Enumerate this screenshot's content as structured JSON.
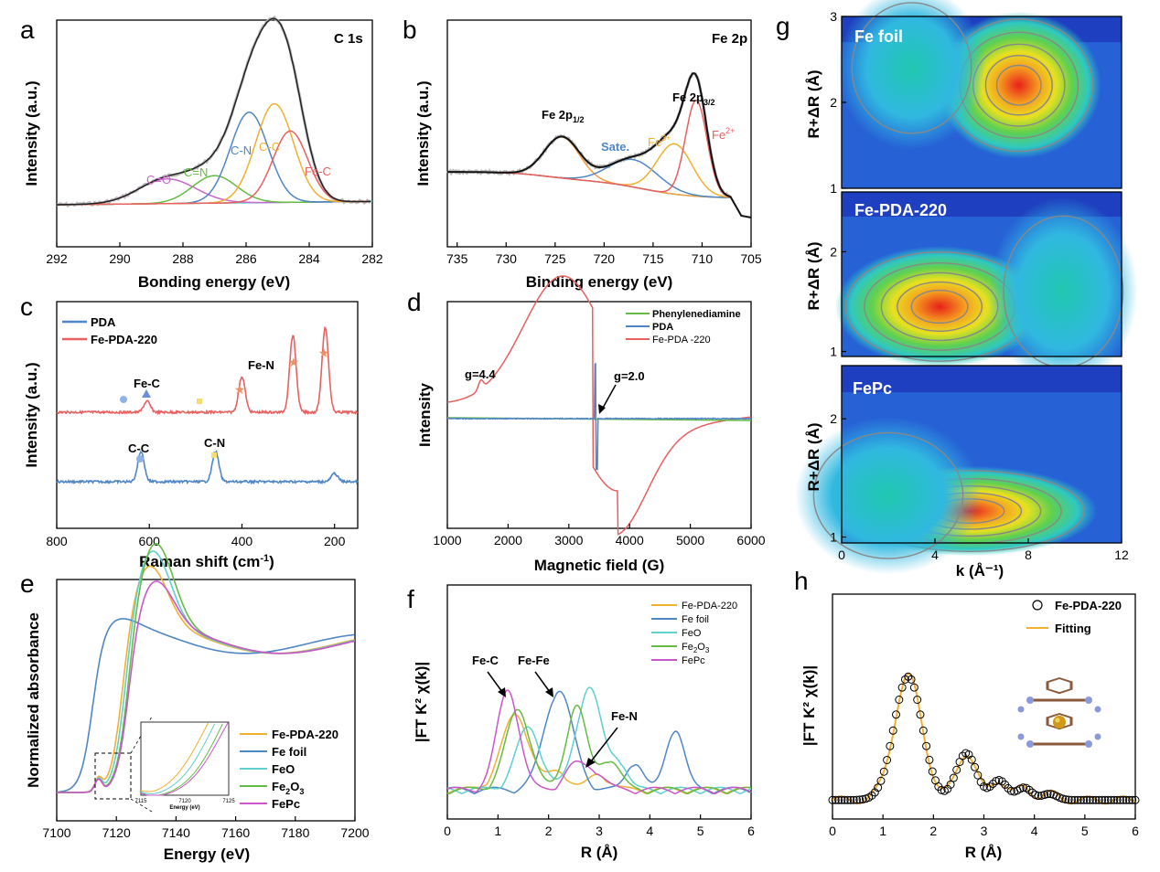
{
  "panel_labels": [
    "a",
    "b",
    "c",
    "d",
    "e",
    "f",
    "g",
    "h"
  ],
  "chart_data": [
    {
      "id": "a",
      "type": "line",
      "title": "C 1s",
      "xlabel": "Bonding energy (eV)",
      "ylabel": "Intensity (a.u.)",
      "xlim": [
        292,
        282
      ],
      "ylim": [
        0,
        1
      ],
      "xticks": [
        "292",
        "290",
        "288",
        "286",
        "284",
        "282"
      ],
      "peaks": [
        {
          "name": "C=O",
          "center": 288.5,
          "height": 0.09,
          "width": 0.9,
          "color": "#cc66cc"
        },
        {
          "name": "C=N",
          "center": 287.0,
          "height": 0.1,
          "width": 0.7,
          "color": "#66bb44"
        },
        {
          "name": "C-N",
          "center": 285.9,
          "height": 0.33,
          "width": 0.6,
          "color": "#4f86c6"
        },
        {
          "name": "C-C",
          "center": 285.1,
          "height": 0.36,
          "width": 0.6,
          "color": "#f0b030"
        },
        {
          "name": "Fe-C",
          "center": 284.6,
          "height": 0.26,
          "width": 0.55,
          "color": "#e86060"
        }
      ],
      "labels": [
        "C=O",
        "C=N",
        "C-N",
        "C-C",
        "Fe-C"
      ]
    },
    {
      "id": "b",
      "type": "line",
      "title": "Fe 2p",
      "xlabel": "Binding energy (eV)",
      "ylabel": "Intensity (a.u.)",
      "xlim": [
        736,
        705
      ],
      "ylim": [
        0,
        1
      ],
      "xticks": [
        "735",
        "730",
        "725",
        "720",
        "715",
        "710",
        "705"
      ],
      "peaks": [
        {
          "name": "Fe 2p1/2",
          "center": 724.3,
          "height": 0.18,
          "width": 1.8,
          "color": "#f0a040"
        },
        {
          "name": "Sate.",
          "center": 717.0,
          "height": 0.12,
          "width": 2.5,
          "color": "#4f86c6"
        },
        {
          "name": "Fe3+",
          "center": 712.8,
          "height": 0.22,
          "width": 1.8,
          "color": "#f0b030"
        },
        {
          "name": "Fe2+",
          "center": 710.6,
          "height": 0.42,
          "width": 1.1,
          "color": "#e86060"
        }
      ],
      "annotations": {
        "fe2p12_base": "Fe 2p",
        "fe2p12_sub": "1/2",
        "fe2p32_base": "Fe 2p",
        "fe2p32_sub": "3/2",
        "sate": "Sate.",
        "fe3": "Fe",
        "fe3_sup": "3+",
        "fe2": "Fe",
        "fe2_sup": "2+"
      }
    },
    {
      "id": "c",
      "type": "line",
      "xlabel": "Raman shift (cm",
      "xlabel_sup": "-1",
      "xlabel_end": ")",
      "ylabel": "Intensity (a.u.)",
      "xlim": [
        800,
        150
      ],
      "xticks": [
        "800",
        "600",
        "400",
        "200"
      ],
      "series": [
        {
          "name": "PDA",
          "color": "#4f86c6",
          "peaks": [
            {
              "x": 618,
              "h": 0.11
            },
            {
              "x": 457,
              "h": 0.11
            },
            {
              "x": 200,
              "h": 0.03
            }
          ]
        },
        {
          "name": "Fe-PDA-220",
          "color": "#e86060",
          "peaks": [
            {
              "x": 605,
              "h": 0.04
            },
            {
              "x": 400,
              "h": 0.13
            },
            {
              "x": 290,
              "h": 0.28
            },
            {
              "x": 220,
              "h": 0.31
            }
          ]
        }
      ],
      "annotations": [
        "Fe-C",
        "Fe-N",
        "C-C",
        "C-N"
      ]
    },
    {
      "id": "d",
      "type": "line",
      "xlabel": "Magnetic field (G)",
      "ylabel": "Intensity",
      "xlim": [
        1000,
        6000
      ],
      "xticks": [
        "1000",
        "2000",
        "3000",
        "4000",
        "5000",
        "6000"
      ],
      "series": [
        {
          "name": "Phenylenediamine",
          "color": "#66bb44"
        },
        {
          "name": "PDA",
          "color": "#4f86c6"
        },
        {
          "name": "Fe-PDA -220",
          "color": "#e86060"
        }
      ],
      "annotations": [
        "g=4.4",
        "g=2.0"
      ]
    },
    {
      "id": "e",
      "type": "line",
      "xlabel": "Energy (eV)",
      "ylabel": "Normalized absorbance",
      "xlim": [
        7100,
        7200
      ],
      "xticks": [
        "7100",
        "7120",
        "7140",
        "7160",
        "7180",
        "7200"
      ],
      "inset_xticks": [
        "7115",
        "7120",
        "7125"
      ],
      "inset_xlabel": "Energy (eV)",
      "series": [
        {
          "name": "Fe-PDA-220",
          "color": "#f0b030",
          "edge": 7122,
          "white_line": 1.4
        },
        {
          "name": "Fe foil",
          "color": "#4f86c6",
          "edge": 7112,
          "white_line": 1.05
        },
        {
          "name": "FeO",
          "color": "#5fcfcf",
          "edge": 7123,
          "white_line": 1.5
        },
        {
          "name": "Fe2O3",
          "color": "#66bb44",
          "edge": 7124,
          "white_line": 1.55
        },
        {
          "name": "FePc",
          "color": "#cc55cc",
          "edge": 7124,
          "white_line": 1.3
        }
      ],
      "legend_sub": {
        "Fe2O3": [
          "Fe",
          "2",
          "O",
          "3"
        ]
      }
    },
    {
      "id": "f",
      "type": "line",
      "xlabel": "R (Å)",
      "ylabel": "|FT K² χ(k)|",
      "xlim": [
        0,
        6
      ],
      "xticks": [
        "0",
        "1",
        "2",
        "3",
        "4",
        "5",
        "6"
      ],
      "series": [
        {
          "name": "Fe-PDA-220",
          "color": "#f0b030",
          "peaks": [
            [
              1.35,
              0.58,
              0.28
            ],
            [
              2.2,
              0.14,
              0.2
            ],
            [
              3.0,
              0.12,
              0.2
            ]
          ]
        },
        {
          "name": "Fe foil",
          "color": "#4f86c6",
          "peaks": [
            [
              2.2,
              0.78,
              0.28
            ],
            [
              3.7,
              0.22,
              0.16
            ],
            [
              4.5,
              0.48,
              0.18
            ]
          ]
        },
        {
          "name": "FeO",
          "color": "#5fcfcf",
          "peaks": [
            [
              1.6,
              0.48,
              0.25
            ],
            [
              2.8,
              0.8,
              0.25
            ],
            [
              3.4,
              0.2,
              0.16
            ]
          ]
        },
        {
          "name": "Fe2O3",
          "color": "#66bb44",
          "peaks": [
            [
              1.4,
              0.62,
              0.25
            ],
            [
              2.55,
              0.66,
              0.2
            ],
            [
              3.2,
              0.24,
              0.2
            ]
          ]
        },
        {
          "name": "FePc",
          "color": "#cc55cc",
          "peaks": [
            [
              1.2,
              0.78,
              0.22
            ],
            [
              2.5,
              0.18,
              0.2
            ],
            [
              2.9,
              0.14,
              0.2
            ]
          ]
        }
      ],
      "annotations": [
        "Fe-C",
        "Fe-Fe",
        "Fe-N"
      ],
      "legend_sub": {
        "Fe2O3": [
          "Fe",
          "2",
          "O",
          "3"
        ]
      }
    },
    {
      "id": "g",
      "type": "heatmap",
      "xlabel": "k (Å⁻¹)",
      "ylabel": "R+ΔR (Å)",
      "xlim": [
        0,
        12
      ],
      "xticks": [
        "0",
        "4",
        "8",
        "12"
      ],
      "subplots": [
        {
          "name": "Fe foil",
          "yticks": [
            "1",
            "2",
            "3"
          ],
          "ylim": [
            1,
            3
          ],
          "blobs": [
            [
              7.6,
              2.2,
              2.2,
              0.45,
              1.0
            ],
            [
              3.0,
              2.4,
              2.0,
              0.5,
              0.35
            ]
          ]
        },
        {
          "name": "Fe-PDA-220",
          "yticks": [
            "1",
            "2"
          ],
          "ylim": [
            0.95,
            2.6
          ],
          "blobs": [
            [
              4.2,
              1.45,
              2.8,
              0.32,
              1.0
            ],
            [
              9.5,
              1.6,
              2.0,
              0.5,
              0.45
            ]
          ]
        },
        {
          "name": "FePc",
          "yticks": [
            "1",
            "2"
          ],
          "ylim": [
            0.95,
            2.45
          ],
          "blobs": [
            [
              5.5,
              1.22,
              3.4,
              0.2,
              1.0
            ],
            [
              2.0,
              1.35,
              2.5,
              0.35,
              0.45
            ]
          ]
        }
      ]
    },
    {
      "id": "h",
      "type": "scatter",
      "xlabel": "R (Å)",
      "ylabel": "|FT K² χ(k)|",
      "xlim": [
        0,
        6
      ],
      "xticks": [
        "0",
        "1",
        "2",
        "3",
        "4",
        "5",
        "6"
      ],
      "series": [
        {
          "name": "Fe-PDA-220",
          "style": "open-circles",
          "color": "#000000"
        },
        {
          "name": "Fitting",
          "style": "line",
          "color": "#f0b030"
        }
      ],
      "peaks": [
        [
          1.5,
          1.0,
          0.28
        ],
        [
          2.65,
          0.38,
          0.2
        ],
        [
          3.3,
          0.16,
          0.16
        ],
        [
          3.8,
          0.1,
          0.15
        ],
        [
          4.3,
          0.05,
          0.15
        ]
      ]
    }
  ]
}
